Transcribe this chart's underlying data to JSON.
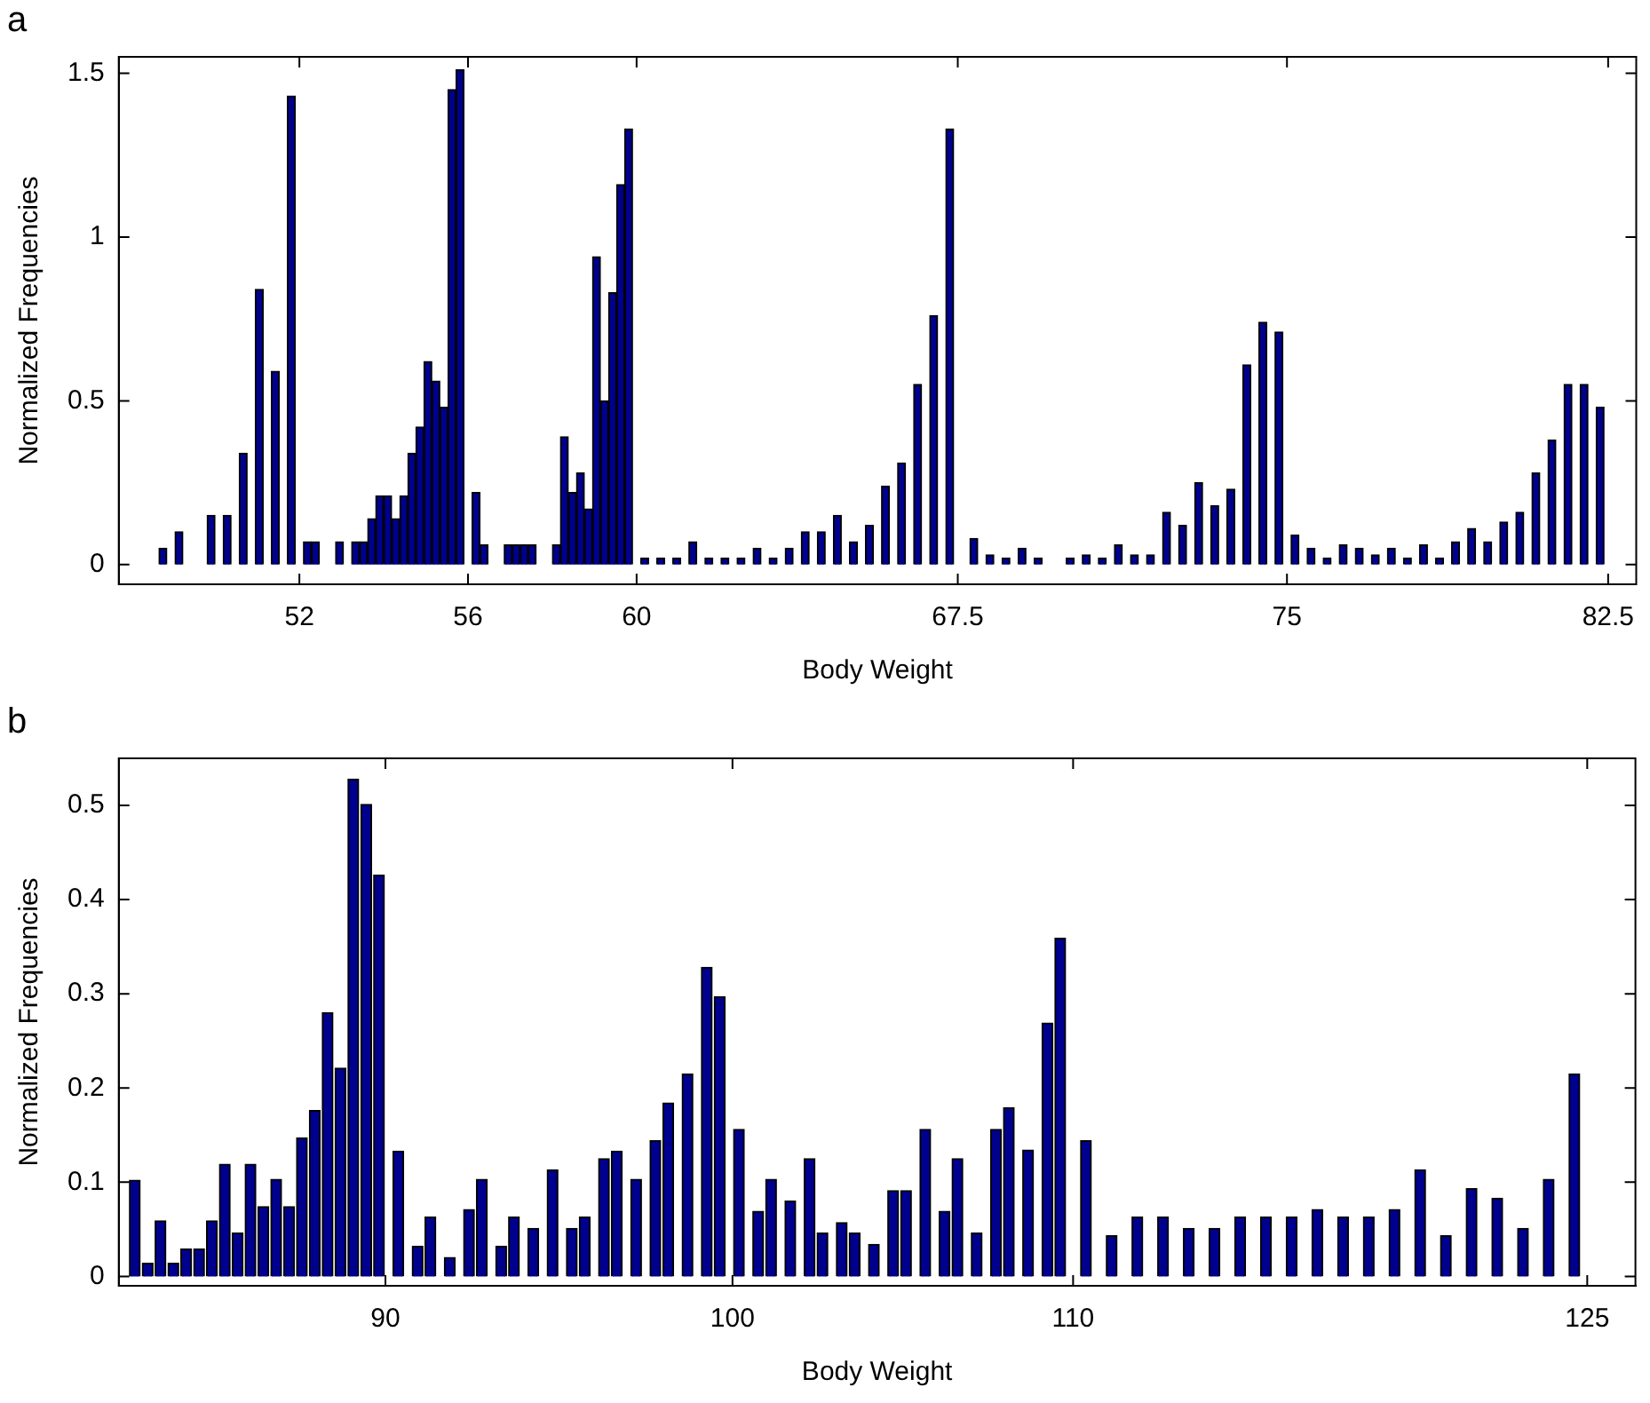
{
  "chart_data": [
    {
      "type": "bar",
      "title": "a",
      "xlabel": "Body Weight",
      "ylabel": "Normalized Frequencies",
      "color": "#00008f",
      "ylim": [
        -0.06,
        1.55
      ],
      "yticks": [
        0,
        0.5,
        1,
        1.5
      ],
      "categories": [
        null,
        null,
        null,
        null,
        null,
        null,
        null,
        null,
        null,
        null,
        null,
        null,
        null,
        null,
        null,
        null,
        null,
        null,
        null,
        null,
        null,
        null,
        "52",
        null,
        null,
        null,
        null,
        null,
        null,
        null,
        null,
        null,
        null,
        null,
        null,
        null,
        null,
        null,
        null,
        null,
        null,
        null,
        null,
        "56",
        null,
        null,
        null,
        null,
        null,
        null,
        null,
        null,
        null,
        null,
        null,
        null,
        null,
        null,
        null,
        null,
        null,
        null,
        null,
        null,
        "60",
        null,
        null,
        null,
        null,
        null,
        null,
        null,
        null,
        null,
        null,
        null,
        null,
        null,
        null,
        null,
        null,
        null,
        null,
        null,
        null,
        null,
        null,
        null,
        null,
        null,
        null,
        null,
        null,
        null,
        null,
        null,
        null,
        null,
        null,
        null,
        null,
        null,
        null,
        null,
        "67.5",
        null,
        null,
        null,
        null,
        null,
        null,
        null,
        null,
        null,
        null,
        null,
        null,
        null,
        null,
        null,
        null,
        null,
        null,
        null,
        null,
        null,
        null,
        null,
        null,
        null,
        null,
        null,
        null,
        null,
        null,
        null,
        null,
        null,
        null,
        null,
        null,
        null,
        null,
        null,
        null,
        "75",
        null,
        null,
        null,
        null,
        null,
        null,
        null,
        null,
        null,
        null,
        null,
        null,
        null,
        null,
        null,
        null,
        null,
        null,
        null,
        null,
        null,
        null,
        null,
        null,
        null,
        null,
        null,
        null,
        null,
        null,
        null,
        null,
        null,
        null,
        null,
        null,
        null,
        null,
        null,
        "82.5",
        null,
        null,
        null
      ],
      "values": [
        null,
        null,
        null,
        null,
        null,
        0.05,
        null,
        0.1,
        null,
        null,
        null,
        0.15,
        null,
        0.15,
        null,
        0.34,
        null,
        0.84,
        null,
        0.59,
        null,
        1.43,
        null,
        0.07,
        0.07,
        null,
        null,
        0.07,
        null,
        0.07,
        0.07,
        0.14,
        0.21,
        0.21,
        0.14,
        0.21,
        0.34,
        0.42,
        0.62,
        0.56,
        0.48,
        1.45,
        1.51,
        null,
        0.22,
        0.06,
        null,
        null,
        0.06,
        0.06,
        0.06,
        0.06,
        null,
        null,
        0.06,
        0.39,
        0.22,
        0.28,
        0.17,
        0.94,
        0.5,
        0.83,
        1.16,
        1.33,
        null,
        0.02,
        null,
        0.02,
        null,
        0.02,
        null,
        0.07,
        null,
        0.02,
        null,
        0.02,
        null,
        0.02,
        null,
        0.05,
        null,
        0.02,
        null,
        0.05,
        null,
        0.1,
        null,
        0.1,
        null,
        0.15,
        null,
        0.07,
        null,
        0.12,
        null,
        0.24,
        null,
        0.31,
        null,
        0.55,
        null,
        0.76,
        null,
        1.33,
        null,
        null,
        0.08,
        null,
        0.03,
        null,
        0.02,
        null,
        0.05,
        null,
        0.02,
        null,
        null,
        null,
        0.02,
        null,
        0.03,
        null,
        0.02,
        null,
        0.06,
        null,
        0.03,
        null,
        0.03,
        null,
        0.16,
        null,
        0.12,
        null,
        0.25,
        null,
        0.18,
        null,
        0.23,
        null,
        0.61,
        null,
        0.74,
        null,
        0.71,
        null,
        0.09,
        null,
        0.05,
        null,
        0.02,
        null,
        0.06,
        null,
        0.05,
        null,
        0.03,
        null,
        0.05,
        null,
        0.02,
        null,
        0.06,
        null,
        0.02,
        null,
        0.07,
        null,
        0.11,
        null,
        0.07,
        null,
        0.13,
        null,
        0.16,
        null,
        0.28,
        null,
        0.38,
        null,
        0.55,
        null,
        0.55,
        null,
        0.48,
        null,
        null,
        null,
        null
      ]
    },
    {
      "type": "bar",
      "title": "b",
      "xlabel": "Body Weight",
      "ylabel": "Normalized Frequencies",
      "color": "#00008f",
      "ylim": [
        -0.01,
        0.55
      ],
      "yticks": [
        0,
        0.1,
        0.2,
        0.3,
        0.4,
        0.5
      ],
      "categories": [
        null,
        null,
        null,
        null,
        null,
        null,
        null,
        null,
        null,
        null,
        null,
        null,
        null,
        null,
        null,
        null,
        null,
        null,
        null,
        null,
        null,
        null,
        null,
        null,
        null,
        null,
        null,
        null,
        null,
        null,
        null,
        null,
        null,
        null,
        null,
        null,
        null,
        null,
        null,
        null,
        null,
        "90",
        null,
        null,
        null,
        null,
        null,
        null,
        null,
        null,
        null,
        null,
        null,
        null,
        null,
        null,
        null,
        null,
        null,
        null,
        null,
        null,
        null,
        null,
        null,
        null,
        null,
        null,
        null,
        null,
        null,
        null,
        null,
        null,
        null,
        null,
        null,
        null,
        null,
        null,
        null,
        null,
        null,
        null,
        null,
        null,
        null,
        null,
        null,
        null,
        null,
        null,
        null,
        null,
        null,
        "100",
        null,
        null,
        null,
        null,
        null,
        null,
        null,
        null,
        null,
        null,
        null,
        null,
        null,
        null,
        null,
        null,
        null,
        null,
        null,
        null,
        null,
        null,
        null,
        null,
        null,
        null,
        null,
        null,
        null,
        null,
        null,
        null,
        null,
        null,
        null,
        null,
        null,
        null,
        null,
        null,
        null,
        null,
        null,
        null,
        null,
        null,
        null,
        null,
        null,
        null,
        null,
        null,
        "110",
        null,
        null,
        null,
        null,
        null,
        null,
        null,
        null,
        null,
        null,
        null,
        null,
        null,
        null,
        null,
        null,
        null,
        null,
        null,
        null,
        null,
        null,
        null,
        null,
        null,
        null,
        null,
        null,
        null,
        null,
        null,
        null,
        null,
        null,
        null,
        null,
        null,
        null,
        null,
        null,
        null,
        null,
        null,
        null,
        null,
        null,
        null,
        null,
        null,
        null,
        null,
        null,
        null,
        null,
        null,
        null,
        null,
        null,
        null,
        null,
        null,
        null,
        null,
        null,
        null,
        null,
        null,
        null,
        null,
        null,
        null,
        null,
        null,
        null,
        null,
        null,
        null,
        null,
        null,
        "125",
        null,
        null,
        null,
        null,
        null,
        null,
        null
      ],
      "values": [
        null,
        null,
        0.102,
        null,
        0.014,
        null,
        0.059,
        null,
        0.014,
        null,
        0.029,
        null,
        0.029,
        null,
        0.059,
        null,
        0.119,
        null,
        0.046,
        null,
        0.119,
        null,
        0.074,
        null,
        0.103,
        null,
        0.074,
        null,
        0.147,
        null,
        0.176,
        null,
        0.28,
        null,
        0.221,
        null,
        0.528,
        null,
        0.501,
        null,
        0.426,
        null,
        null,
        0.133,
        null,
        null,
        0.032,
        null,
        0.063,
        null,
        null,
        0.02,
        null,
        null,
        0.071,
        null,
        0.103,
        null,
        null,
        0.032,
        null,
        0.063,
        null,
        null,
        0.051,
        null,
        null,
        0.113,
        null,
        null,
        0.051,
        null,
        0.063,
        null,
        null,
        0.125,
        null,
        0.133,
        null,
        null,
        0.103,
        null,
        null,
        0.144,
        null,
        0.184,
        null,
        null,
        0.215,
        null,
        null,
        0.328,
        null,
        0.297,
        null,
        null,
        0.156,
        null,
        null,
        0.069,
        null,
        0.103,
        null,
        null,
        0.08,
        null,
        null,
        0.125,
        null,
        0.046,
        null,
        null,
        0.057,
        null,
        0.046,
        null,
        null,
        0.034,
        null,
        null,
        0.091,
        null,
        0.091,
        null,
        null,
        0.156,
        null,
        null,
        0.069,
        null,
        0.125,
        null,
        null,
        0.046,
        null,
        null,
        0.156,
        null,
        0.179,
        null,
        null,
        0.134,
        null,
        null,
        0.269,
        null,
        0.359,
        null,
        null,
        null,
        0.144,
        null,
        null,
        null,
        0.043,
        null,
        null,
        null,
        0.063,
        null,
        null,
        null,
        0.063,
        null,
        null,
        null,
        0.051,
        null,
        null,
        null,
        0.051,
        null,
        null,
        null,
        0.063,
        null,
        null,
        null,
        0.063,
        null,
        null,
        null,
        0.063,
        null,
        null,
        null,
        0.071,
        null,
        null,
        null,
        0.063,
        null,
        null,
        null,
        0.063,
        null,
        null,
        null,
        0.071,
        null,
        null,
        null,
        0.113,
        null,
        null,
        null,
        0.043,
        null,
        null,
        null,
        0.093,
        null,
        null,
        null,
        0.083,
        null,
        null,
        null,
        0.051,
        null,
        null,
        null,
        0.103,
        null,
        null,
        null,
        0.215,
        null,
        null,
        null,
        null,
        null,
        null,
        null,
        null,
        null
      ]
    }
  ]
}
